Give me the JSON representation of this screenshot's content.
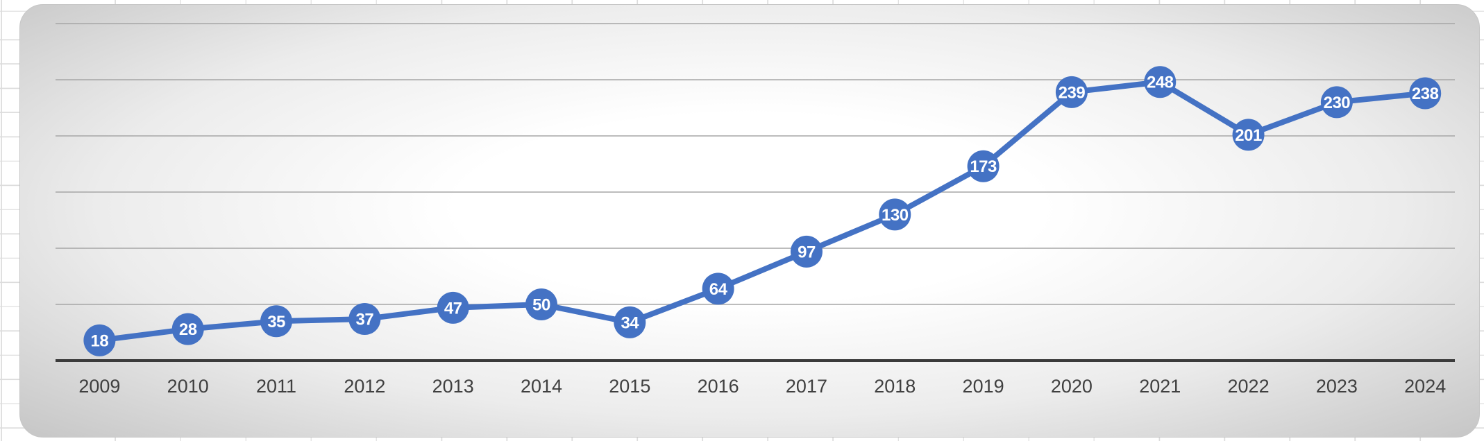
{
  "chart_data": {
    "type": "line",
    "title": "",
    "categories": [
      "2009",
      "2010",
      "2011",
      "2012",
      "2013",
      "2014",
      "2015",
      "2016",
      "2017",
      "2018",
      "2019",
      "2020",
      "2021",
      "2022",
      "2023",
      "2024"
    ],
    "series": [
      {
        "name": "values",
        "values": [
          18,
          28,
          35,
          37,
          47,
          50,
          34,
          64,
          97,
          130,
          173,
          239,
          248,
          201,
          230,
          238
        ]
      }
    ],
    "xlabel": "",
    "ylabel": "",
    "ylim": [
      0,
      300
    ],
    "gridline_interval": 50,
    "grid": true,
    "legend_position": "none",
    "data_labels": "center-on-marker",
    "marker_shape": "circle"
  },
  "colors": {
    "series_blue": "#4472c4",
    "data_label_text": "#ffffff",
    "axis_line": "#3b3b3b",
    "gridline": "#a6a6a6",
    "axis_tick_label": "#3f3f3f",
    "chart_edge_gray": "#c3c3c3",
    "spreadsheet_gridline": "#dcdcdc",
    "spreadsheet_background": "#ffffff"
  }
}
